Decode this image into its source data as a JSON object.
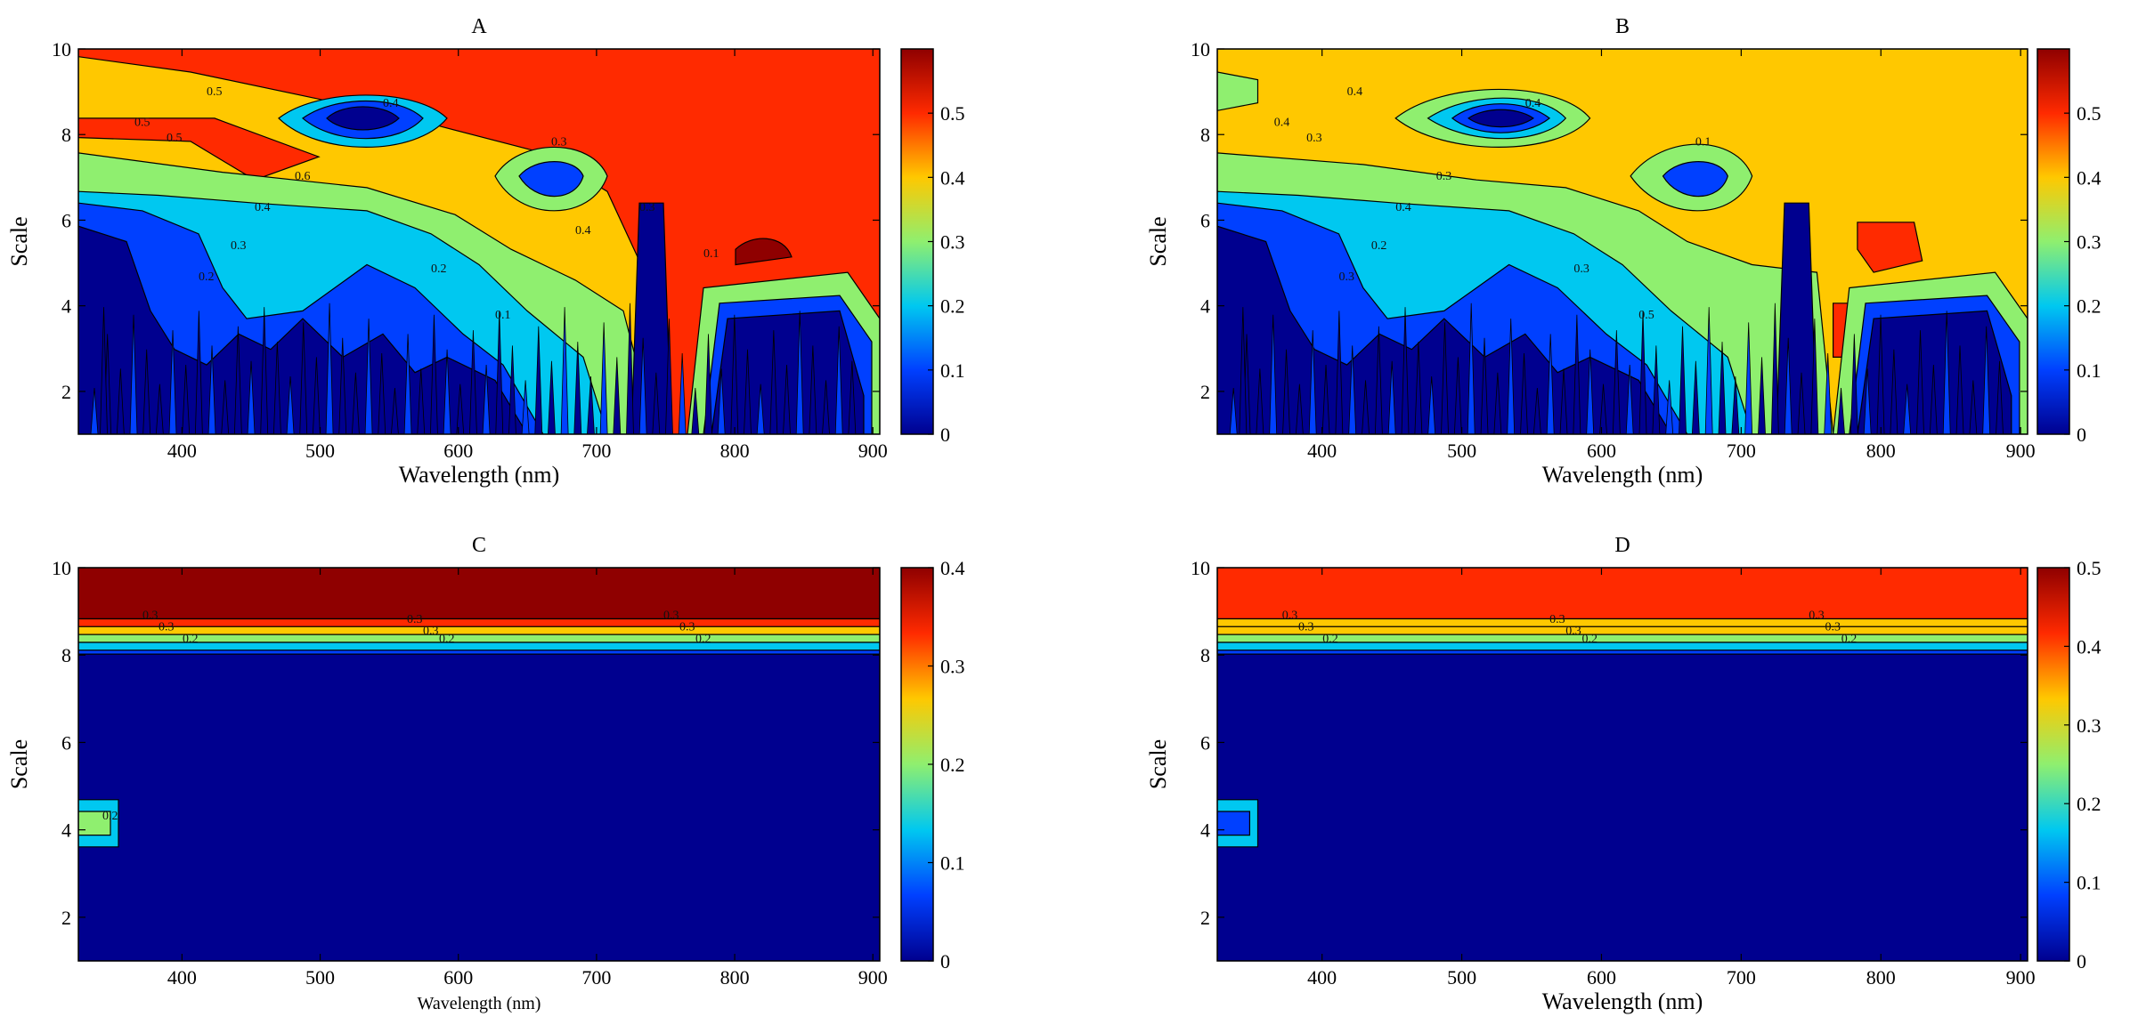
{
  "chart_data": [
    {
      "type": "heatmap",
      "title": "A",
      "xlabel": "Wavelength (nm)",
      "ylabel": "Scale",
      "xlim": [
        325,
        905
      ],
      "ylim": [
        1,
        10
      ],
      "xticks": [
        "400",
        "500",
        "600",
        "700",
        "800",
        "900"
      ],
      "yticks": [
        "2",
        "4",
        "6",
        "8",
        "10"
      ],
      "colorbar": {
        "ticks": [
          "0",
          "0.1",
          "0.2",
          "0.3",
          "0.4",
          "0.5"
        ],
        "max": 0.6
      },
      "contour_labels": [
        "0.5",
        "0.5",
        "0.5",
        "0.6",
        "0.4",
        "0.3",
        "0.2",
        "0.4",
        "0.3",
        "0.2",
        "0.1",
        "0.4",
        "0.3",
        "0.1"
      ]
    },
    {
      "type": "heatmap",
      "title": "B",
      "xlabel": "Wavelength (nm)",
      "ylabel": "Scale",
      "xlim": [
        325,
        905
      ],
      "ylim": [
        1,
        10
      ],
      "xticks": [
        "400",
        "500",
        "600",
        "700",
        "800",
        "900"
      ],
      "yticks": [
        "2",
        "4",
        "6",
        "8",
        "10"
      ],
      "colorbar": {
        "ticks": [
          "0",
          "0.1",
          "0.2",
          "0.3",
          "0.4",
          "0.5"
        ],
        "max": 0.6
      },
      "contour_labels": [
        "0.4",
        "0.3",
        "0.4",
        "0.3",
        "0.4",
        "0.2",
        "0.3",
        "0.4",
        "0.1",
        "0.3",
        "0.5"
      ]
    },
    {
      "type": "heatmap",
      "title": "C",
      "xlabel": "Wavelength (nm)",
      "ylabel": "Scale",
      "xlim": [
        325,
        905
      ],
      "ylim": [
        1,
        10
      ],
      "xticks": [
        "400",
        "500",
        "600",
        "700",
        "800",
        "900"
      ],
      "yticks": [
        "2",
        "4",
        "6",
        "8",
        "10"
      ],
      "colorbar": {
        "ticks": [
          "0",
          "0.1",
          "0.2",
          "0.3",
          "0.4"
        ],
        "max": 0.4
      },
      "contour_labels": [
        "0.3",
        "0.3",
        "0.2",
        "0.3",
        "0.3",
        "0.2",
        "0.3",
        "0.3",
        "0.2",
        "0.2"
      ]
    },
    {
      "type": "heatmap",
      "title": "D",
      "xlabel": "Wavelength (nm)",
      "ylabel": "Scale",
      "xlim": [
        325,
        905
      ],
      "ylim": [
        1,
        10
      ],
      "xticks": [
        "400",
        "500",
        "600",
        "700",
        "800",
        "900"
      ],
      "yticks": [
        "2",
        "4",
        "6",
        "8",
        "10"
      ],
      "colorbar": {
        "ticks": [
          "0",
          "0.1",
          "0.2",
          "0.3",
          "0.4",
          "0.5"
        ],
        "max": 0.5
      },
      "contour_labels": [
        "0.3",
        "0.3",
        "0.2",
        "0.3",
        "0.3",
        "0.2",
        "0.3",
        "0.3",
        "0.2"
      ]
    }
  ],
  "colors": {
    "level_0": "#00008f",
    "level_1": "#0040ff",
    "level_2": "#00c8f0",
    "level_3": "#8fef6f",
    "level_4": "#ffc800",
    "level_5": "#ff2a00",
    "level_6": "#8f0000"
  }
}
